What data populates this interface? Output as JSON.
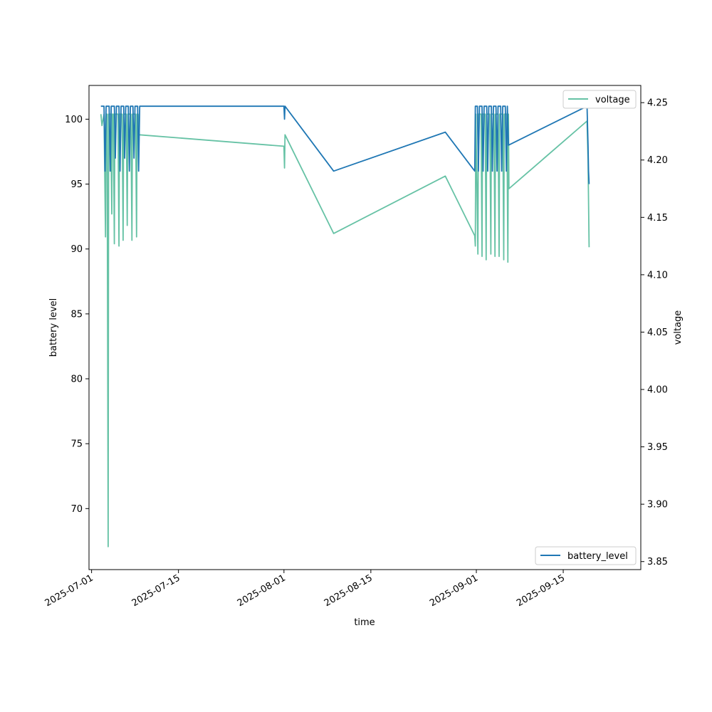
{
  "chart_data": {
    "type": "line",
    "xlabel": "time",
    "ylabel_left": "battery level",
    "ylabel_right": "voltage",
    "x_axis": {
      "type": "date",
      "range": [
        "2025-06-30T14:00",
        "2025-09-27T12:00"
      ],
      "ticks": [
        "2025-07-01",
        "2025-07-15",
        "2025-08-01",
        "2025-08-15",
        "2025-09-01",
        "2025-09-15"
      ]
    },
    "y_left": {
      "range": [
        65.3,
        102.6
      ],
      "ticks": [
        70,
        75,
        80,
        85,
        90,
        95,
        100
      ]
    },
    "y_right": {
      "range": [
        3.843,
        4.265
      ],
      "ticks": [
        3.85,
        3.9,
        3.95,
        4.0,
        4.05,
        4.1,
        4.15,
        4.2,
        4.25
      ]
    },
    "grid": false,
    "series": [
      {
        "name": "battery_level",
        "axis": "left",
        "color": "#1f77b4",
        "legend_position": "lower right",
        "points": [
          [
            "2025-07-02T12:00",
            101
          ],
          [
            "2025-07-03T00:00",
            101
          ],
          [
            "2025-07-03T04:00",
            96
          ],
          [
            "2025-07-03T08:00",
            101
          ],
          [
            "2025-07-03T20:00",
            101
          ],
          [
            "2025-07-04T00:00",
            96
          ],
          [
            "2025-07-04T04:00",
            101
          ],
          [
            "2025-07-04T16:00",
            101
          ],
          [
            "2025-07-04T20:00",
            97
          ],
          [
            "2025-07-05T00:00",
            101
          ],
          [
            "2025-07-05T10:00",
            101
          ],
          [
            "2025-07-05T14:00",
            96
          ],
          [
            "2025-07-05T18:00",
            101
          ],
          [
            "2025-07-06T04:00",
            101
          ],
          [
            "2025-07-06T08:00",
            97
          ],
          [
            "2025-07-06T12:00",
            101
          ],
          [
            "2025-07-06T22:00",
            101
          ],
          [
            "2025-07-07T02:00",
            96
          ],
          [
            "2025-07-07T06:00",
            101
          ],
          [
            "2025-07-07T16:00",
            101
          ],
          [
            "2025-07-07T20:00",
            97
          ],
          [
            "2025-07-08T00:00",
            101
          ],
          [
            "2025-07-08T10:00",
            101
          ],
          [
            "2025-07-08T14:00",
            96
          ],
          [
            "2025-07-08T18:00",
            101
          ],
          [
            "2025-07-09T00:00",
            101
          ],
          [
            "2025-08-01T00:00",
            101
          ],
          [
            "2025-08-01T02:00",
            100
          ],
          [
            "2025-08-01T04:00",
            101
          ],
          [
            "2025-08-09T00:00",
            96
          ],
          [
            "2025-08-27T00:00",
            99
          ],
          [
            "2025-08-31T18:00",
            96
          ],
          [
            "2025-08-31T20:00",
            101
          ],
          [
            "2025-09-01T04:00",
            101
          ],
          [
            "2025-09-01T08:00",
            96
          ],
          [
            "2025-09-01T12:00",
            101
          ],
          [
            "2025-09-01T22:00",
            101
          ],
          [
            "2025-09-02T02:00",
            96
          ],
          [
            "2025-09-02T06:00",
            101
          ],
          [
            "2025-09-02T16:00",
            101
          ],
          [
            "2025-09-02T20:00",
            96
          ],
          [
            "2025-09-03T00:00",
            101
          ],
          [
            "2025-09-03T10:00",
            101
          ],
          [
            "2025-09-03T14:00",
            96
          ],
          [
            "2025-09-03T18:00",
            101
          ],
          [
            "2025-09-04T04:00",
            101
          ],
          [
            "2025-09-04T08:00",
            96
          ],
          [
            "2025-09-04T12:00",
            101
          ],
          [
            "2025-09-04T22:00",
            101
          ],
          [
            "2025-09-05T02:00",
            96
          ],
          [
            "2025-09-05T06:00",
            101
          ],
          [
            "2025-09-05T16:00",
            101
          ],
          [
            "2025-09-05T20:00",
            96
          ],
          [
            "2025-09-06T00:00",
            101
          ],
          [
            "2025-09-06T04:00",
            98
          ],
          [
            "2025-09-18T20:00",
            101
          ],
          [
            "2025-09-19T00:00",
            98
          ],
          [
            "2025-09-19T02:00",
            96
          ],
          [
            "2025-09-19T04:00",
            95
          ]
        ]
      },
      {
        "name": "voltage",
        "axis": "right",
        "color": "#66c2a5",
        "legend_position": "upper right",
        "points": [
          [
            "2025-07-02T12:00",
            4.24
          ],
          [
            "2025-07-02T16:00",
            4.23
          ],
          [
            "2025-07-03T00:00",
            4.24
          ],
          [
            "2025-07-03T06:00",
            4.133
          ],
          [
            "2025-07-03T08:00",
            4.24
          ],
          [
            "2025-07-03T12:00",
            4.24
          ],
          [
            "2025-07-03T16:00",
            3.863
          ],
          [
            "2025-07-03T18:00",
            4.24
          ],
          [
            "2025-07-04T02:00",
            4.24
          ],
          [
            "2025-07-04T06:00",
            4.153
          ],
          [
            "2025-07-04T08:00",
            4.24
          ],
          [
            "2025-07-04T12:00",
            4.24
          ],
          [
            "2025-07-04T16:00",
            4.127
          ],
          [
            "2025-07-04T18:00",
            4.24
          ],
          [
            "2025-07-05T06:00",
            4.24
          ],
          [
            "2025-07-05T10:00",
            4.125
          ],
          [
            "2025-07-05T12:00",
            4.24
          ],
          [
            "2025-07-05T22:00",
            4.24
          ],
          [
            "2025-07-06T02:00",
            4.13
          ],
          [
            "2025-07-06T04:00",
            4.24
          ],
          [
            "2025-07-06T14:00",
            4.24
          ],
          [
            "2025-07-06T18:00",
            4.143
          ],
          [
            "2025-07-06T20:00",
            4.24
          ],
          [
            "2025-07-07T08:00",
            4.24
          ],
          [
            "2025-07-07T12:00",
            4.13
          ],
          [
            "2025-07-07T14:00",
            4.24
          ],
          [
            "2025-07-08T02:00",
            4.24
          ],
          [
            "2025-07-08T06:00",
            4.133
          ],
          [
            "2025-07-08T08:00",
            4.24
          ],
          [
            "2025-07-08T12:00",
            4.24
          ],
          [
            "2025-07-08T16:00",
            4.222
          ],
          [
            "2025-08-01T00:00",
            4.212
          ],
          [
            "2025-08-01T02:00",
            4.193
          ],
          [
            "2025-08-01T04:00",
            4.222
          ],
          [
            "2025-08-09T00:00",
            4.136
          ],
          [
            "2025-08-27T00:00",
            4.186
          ],
          [
            "2025-08-31T18:00",
            4.134
          ],
          [
            "2025-08-31T20:00",
            4.125
          ],
          [
            "2025-08-31T22:00",
            4.24
          ],
          [
            "2025-09-01T06:00",
            4.118
          ],
          [
            "2025-09-01T08:00",
            4.24
          ],
          [
            "2025-09-01T18:00",
            4.24
          ],
          [
            "2025-09-01T22:00",
            4.116
          ],
          [
            "2025-09-02T00:00",
            4.24
          ],
          [
            "2025-09-02T10:00",
            4.24
          ],
          [
            "2025-09-02T14:00",
            4.113
          ],
          [
            "2025-09-02T16:00",
            4.24
          ],
          [
            "2025-09-03T04:00",
            4.24
          ],
          [
            "2025-09-03T08:00",
            4.118
          ],
          [
            "2025-09-03T10:00",
            4.24
          ],
          [
            "2025-09-03T20:00",
            4.24
          ],
          [
            "2025-09-04T00:00",
            4.116
          ],
          [
            "2025-09-04T02:00",
            4.24
          ],
          [
            "2025-09-04T12:00",
            4.24
          ],
          [
            "2025-09-04T16:00",
            4.116
          ],
          [
            "2025-09-04T18:00",
            4.24
          ],
          [
            "2025-09-05T06:00",
            4.24
          ],
          [
            "2025-09-05T10:00",
            4.113
          ],
          [
            "2025-09-05T12:00",
            4.24
          ],
          [
            "2025-09-05T22:00",
            4.24
          ],
          [
            "2025-09-06T02:00",
            4.111
          ],
          [
            "2025-09-06T04:00",
            4.24
          ],
          [
            "2025-09-06T06:00",
            4.175
          ],
          [
            "2025-09-18T20:00",
            4.234
          ],
          [
            "2025-09-19T00:00",
            4.2
          ],
          [
            "2025-09-19T04:00",
            4.124
          ]
        ]
      }
    ]
  }
}
